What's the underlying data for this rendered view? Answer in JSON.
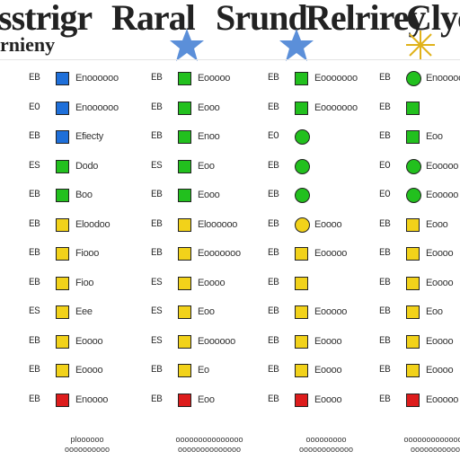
{
  "header": {
    "title_parts": [
      "sstrigr",
      "Raral",
      "Srund",
      "Relrirey",
      "Clyc"
    ],
    "subtitle": "rnieny"
  },
  "colors": {
    "blue": "#1e6fd9",
    "green": "#22c01e",
    "yellow": "#f2d21a",
    "red": "#dd1c1c",
    "star": "#5b8fd9"
  },
  "columns": [
    {
      "rows": [
        {
          "code": "EB",
          "color": "blue",
          "shape": "square",
          "label": "Enoooooo"
        },
        {
          "code": "EO",
          "color": "blue",
          "shape": "square",
          "label": "Enoooooo"
        },
        {
          "code": "EB",
          "color": "blue",
          "shape": "square",
          "label": "Efiecty"
        },
        {
          "code": "ES",
          "color": "green",
          "shape": "square",
          "label": "Dodo"
        },
        {
          "code": "EB",
          "color": "green",
          "shape": "square",
          "label": "Boo"
        },
        {
          "code": "EB",
          "color": "yellow",
          "shape": "square",
          "label": "Eloodoo"
        },
        {
          "code": "EB",
          "color": "yellow",
          "shape": "square",
          "label": "Fiooo"
        },
        {
          "code": "EB",
          "color": "yellow",
          "shape": "square",
          "label": "Fioo"
        },
        {
          "code": "ES",
          "color": "yellow",
          "shape": "square",
          "label": "Eee"
        },
        {
          "code": "EB",
          "color": "yellow",
          "shape": "square",
          "label": "Eoooo"
        },
        {
          "code": "EB",
          "color": "yellow",
          "shape": "square",
          "label": "Eoooo"
        },
        {
          "code": "EB",
          "color": "red",
          "shape": "square",
          "label": "Enoooo"
        }
      ],
      "footer": [
        "ploooooo",
        "oooooooooo"
      ]
    },
    {
      "rows": [
        {
          "code": "EB",
          "color": "green",
          "shape": "square",
          "label": "Eooooo"
        },
        {
          "code": "EB",
          "color": "green",
          "shape": "square",
          "label": "Eooo"
        },
        {
          "code": "EB",
          "color": "green",
          "shape": "square",
          "label": "Enoo"
        },
        {
          "code": "ES",
          "color": "green",
          "shape": "square",
          "label": "Eoo"
        },
        {
          "code": "EB",
          "color": "green",
          "shape": "square",
          "label": "Eooo"
        },
        {
          "code": "EB",
          "color": "yellow",
          "shape": "square",
          "label": "Eloooooo"
        },
        {
          "code": "EB",
          "color": "yellow",
          "shape": "square",
          "label": "Eooooooo"
        },
        {
          "code": "ES",
          "color": "yellow",
          "shape": "square",
          "label": "Eoooo"
        },
        {
          "code": "ES",
          "color": "yellow",
          "shape": "square",
          "label": "Eoo"
        },
        {
          "code": "ES",
          "color": "yellow",
          "shape": "square",
          "label": "Eoooooo"
        },
        {
          "code": "EB",
          "color": "yellow",
          "shape": "square",
          "label": "Eo"
        },
        {
          "code": "EB",
          "color": "red",
          "shape": "square",
          "label": "Eoo"
        }
      ],
      "footer": [
        "ooooooooooooooo",
        "oooooooooooooo"
      ]
    },
    {
      "rows": [
        {
          "code": "EB",
          "color": "green",
          "shape": "square",
          "label": "Eooooooo"
        },
        {
          "code": "EB",
          "color": "green",
          "shape": "square",
          "label": "Eooooooo"
        },
        {
          "code": "EO",
          "color": "green",
          "shape": "circle",
          "label": ""
        },
        {
          "code": "EB",
          "color": "green",
          "shape": "circle",
          "label": ""
        },
        {
          "code": "EB",
          "color": "green",
          "shape": "circle",
          "label": ""
        },
        {
          "code": "EB",
          "color": "yellow",
          "shape": "circle",
          "label": "Eoooo"
        },
        {
          "code": "EB",
          "color": "yellow",
          "shape": "square",
          "label": "Eooooo"
        },
        {
          "code": "EB",
          "color": "yellow",
          "shape": "square",
          "label": ""
        },
        {
          "code": "EB",
          "color": "yellow",
          "shape": "square",
          "label": "Eooooo"
        },
        {
          "code": "EB",
          "color": "yellow",
          "shape": "square",
          "label": "Eoooo"
        },
        {
          "code": "EB",
          "color": "yellow",
          "shape": "square",
          "label": "Eoooo"
        },
        {
          "code": "EB",
          "color": "red",
          "shape": "square",
          "label": "Eoooo"
        }
      ],
      "footer": [
        "ooooooooo",
        "oooooooooooo"
      ]
    },
    {
      "rows": [
        {
          "code": "EB",
          "color": "green",
          "shape": "circle",
          "label": "Enooooo"
        },
        {
          "code": "EB",
          "color": "green",
          "shape": "square",
          "label": ""
        },
        {
          "code": "EB",
          "color": "green",
          "shape": "square",
          "label": "Eoo"
        },
        {
          "code": "EO",
          "color": "green",
          "shape": "circle",
          "label": "Eooooo"
        },
        {
          "code": "EO",
          "color": "green",
          "shape": "circle",
          "label": "Eooooo"
        },
        {
          "code": "EB",
          "color": "yellow",
          "shape": "square",
          "label": "Eooo"
        },
        {
          "code": "EB",
          "color": "yellow",
          "shape": "square",
          "label": "Eoooo"
        },
        {
          "code": "EB",
          "color": "yellow",
          "shape": "square",
          "label": "Eoooo"
        },
        {
          "code": "EB",
          "color": "yellow",
          "shape": "square",
          "label": "Eoo"
        },
        {
          "code": "EB",
          "color": "yellow",
          "shape": "square",
          "label": "Eoooo"
        },
        {
          "code": "EB",
          "color": "yellow",
          "shape": "square",
          "label": "Eoooo"
        },
        {
          "code": "EB",
          "color": "red",
          "shape": "square",
          "label": "Eooooo"
        }
      ],
      "footer": [
        "ooooooooooooooo",
        "oooooooooooo"
      ]
    }
  ]
}
